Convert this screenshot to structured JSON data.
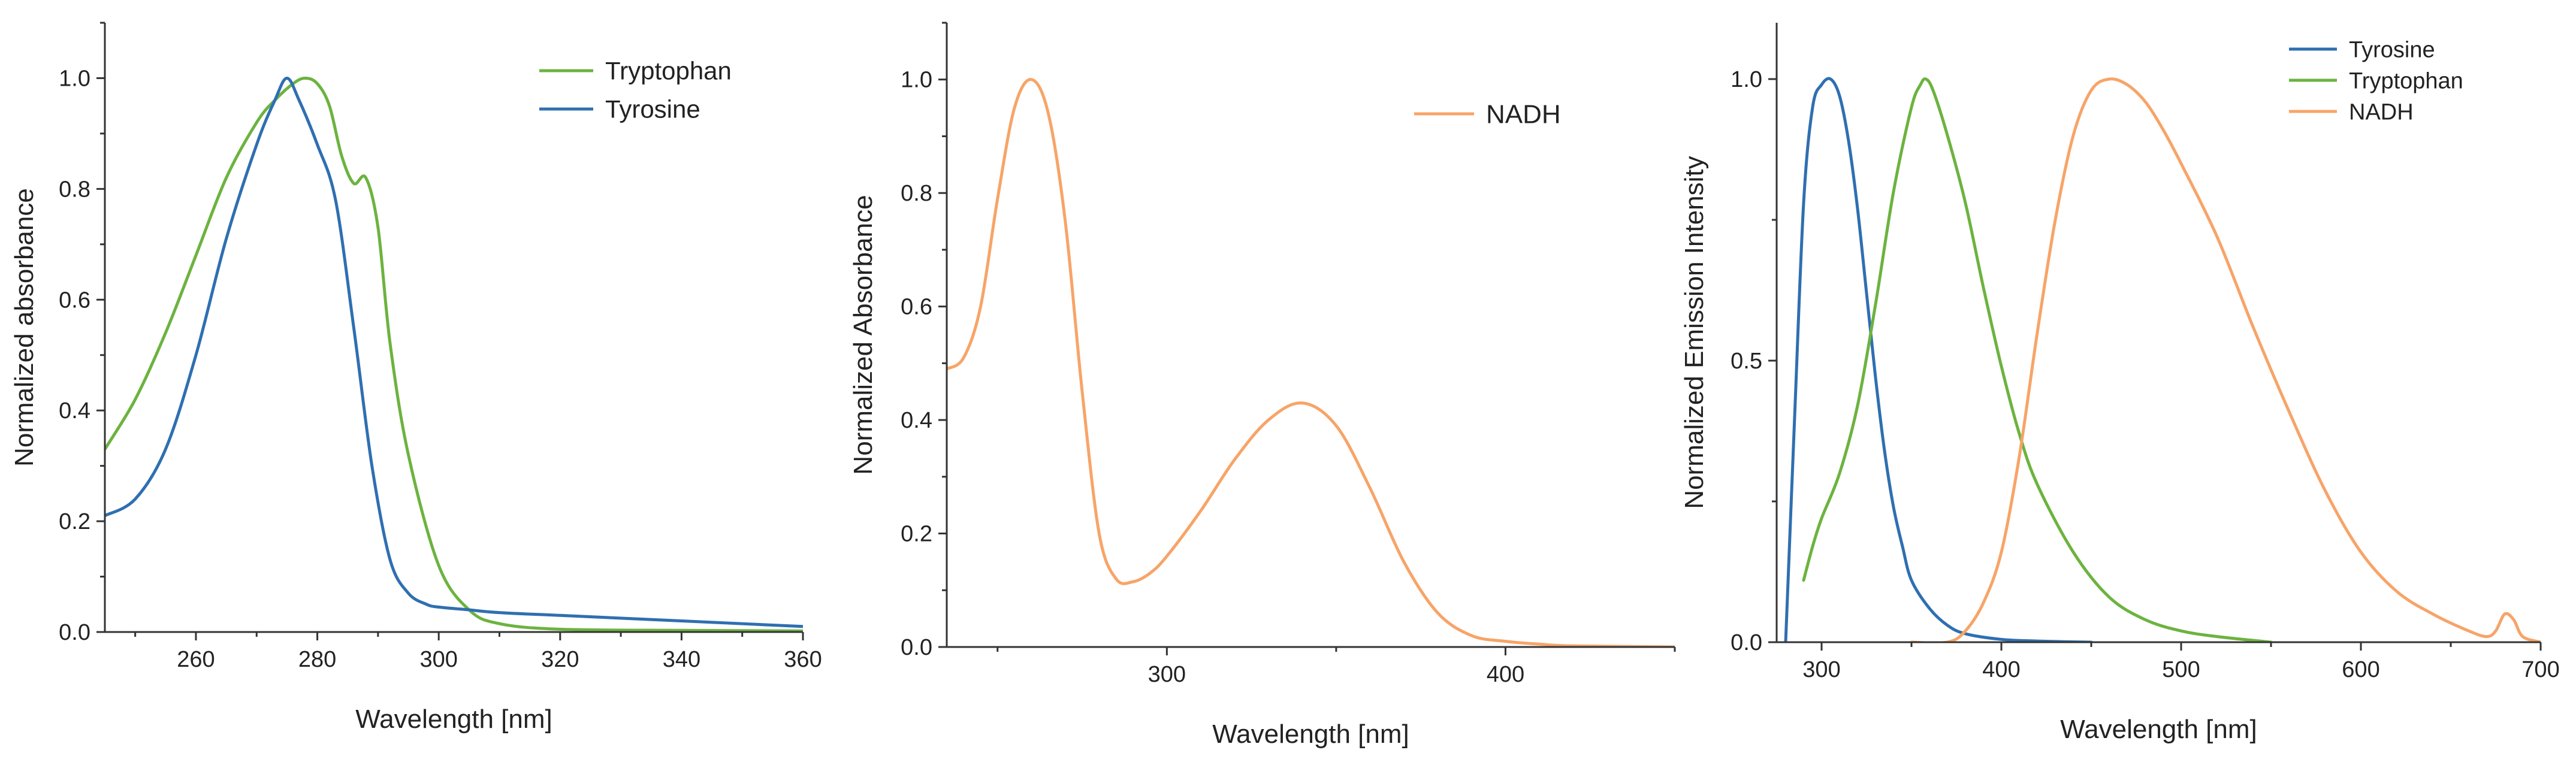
{
  "colors": {
    "tyrosine": "#2f6fb1",
    "tryptophan": "#6cb33f",
    "nadh": "#f7a468",
    "axis": "#333333"
  },
  "chart_data": [
    {
      "type": "line",
      "title": "",
      "xlabel": "Wavelength [nm]",
      "ylabel": "Normalized absorbance",
      "xlim": [
        245,
        360
      ],
      "ylim": [
        0,
        1.1
      ],
      "x_ticks": [
        260,
        280,
        300,
        320,
        340,
        360
      ],
      "y_ticks": [
        0.0,
        0.2,
        0.4,
        0.6,
        0.8,
        1.0
      ],
      "legend_position": "top-right",
      "series": [
        {
          "name": "Tryptophan",
          "color": "#6cb33f",
          "x": [
            245,
            250,
            255,
            260,
            265,
            270,
            273,
            276,
            278,
            280,
            282,
            284,
            286,
            288,
            290,
            292,
            295,
            300,
            305,
            310,
            320,
            340,
            360
          ],
          "y": [
            0.33,
            0.42,
            0.54,
            0.68,
            0.82,
            0.92,
            0.96,
            0.99,
            1.0,
            0.99,
            0.95,
            0.86,
            0.81,
            0.82,
            0.73,
            0.52,
            0.32,
            0.12,
            0.04,
            0.015,
            0.005,
            0.003,
            0.002
          ]
        },
        {
          "name": "Tyrosine",
          "color": "#2f6fb1",
          "x": [
            245,
            250,
            255,
            260,
            265,
            270,
            273,
            275,
            277,
            280,
            283,
            286,
            289,
            292,
            295,
            298,
            300,
            305,
            310,
            320,
            340,
            360
          ],
          "y": [
            0.21,
            0.24,
            0.33,
            0.5,
            0.71,
            0.88,
            0.96,
            1.0,
            0.96,
            0.88,
            0.78,
            0.55,
            0.3,
            0.13,
            0.07,
            0.05,
            0.045,
            0.04,
            0.035,
            0.03,
            0.02,
            0.01
          ]
        }
      ]
    },
    {
      "type": "line",
      "title": "",
      "xlabel": "Wavelength [nm]",
      "ylabel": "Normalized Absorbance",
      "xlim": [
        235,
        450
      ],
      "ylim": [
        0,
        1.1
      ],
      "x_ticks": [
        300,
        400
      ],
      "y_ticks": [
        0.0,
        0.2,
        0.4,
        0.6,
        0.8,
        1.0
      ],
      "legend_position": "top-right",
      "series": [
        {
          "name": "NADH",
          "color": "#f7a468",
          "x": [
            235,
            240,
            245,
            250,
            255,
            260,
            265,
            270,
            275,
            280,
            285,
            290,
            295,
            300,
            310,
            320,
            330,
            340,
            350,
            360,
            370,
            380,
            390,
            400,
            410,
            420,
            450
          ],
          "y": [
            0.49,
            0.51,
            0.6,
            0.79,
            0.95,
            1.0,
            0.94,
            0.75,
            0.45,
            0.2,
            0.12,
            0.115,
            0.13,
            0.16,
            0.24,
            0.33,
            0.4,
            0.43,
            0.39,
            0.28,
            0.15,
            0.06,
            0.02,
            0.01,
            0.005,
            0.002,
            0.0
          ]
        }
      ]
    },
    {
      "type": "line",
      "title": "",
      "xlabel": "Wavelength [nm]",
      "ylabel": "Normalized Emission Intensity",
      "xlim": [
        275,
        700
      ],
      "ylim": [
        0,
        1.1
      ],
      "x_ticks": [
        300,
        400,
        500,
        600,
        700
      ],
      "y_ticks": [
        0.0,
        0.5,
        1.0
      ],
      "legend_position": "top-right",
      "series": [
        {
          "name": "Tyrosine",
          "color": "#2f6fb1",
          "x": [
            280,
            285,
            290,
            295,
            300,
            305,
            310,
            315,
            320,
            325,
            330,
            335,
            340,
            345,
            350,
            360,
            370,
            380,
            400,
            420,
            450
          ],
          "y": [
            0.0,
            0.4,
            0.78,
            0.95,
            0.99,
            1.0,
            0.97,
            0.89,
            0.77,
            0.62,
            0.47,
            0.34,
            0.24,
            0.17,
            0.11,
            0.06,
            0.03,
            0.015,
            0.005,
            0.002,
            0.0
          ]
        },
        {
          "name": "Tryptophan",
          "color": "#6cb33f",
          "x": [
            290,
            295,
            300,
            310,
            320,
            330,
            340,
            350,
            355,
            358,
            362,
            370,
            380,
            390,
            400,
            410,
            420,
            440,
            460,
            480,
            500,
            520,
            550
          ],
          "y": [
            0.11,
            0.17,
            0.22,
            0.3,
            0.42,
            0.6,
            0.8,
            0.95,
            0.99,
            1.0,
            0.98,
            0.9,
            0.78,
            0.63,
            0.49,
            0.37,
            0.28,
            0.16,
            0.08,
            0.04,
            0.02,
            0.01,
            0.0
          ]
        },
        {
          "name": "NADH",
          "color": "#f7a468",
          "x": [
            350,
            370,
            380,
            390,
            400,
            410,
            420,
            430,
            440,
            450,
            460,
            470,
            480,
            490,
            500,
            520,
            540,
            560,
            580,
            600,
            620,
            640,
            660,
            670,
            675,
            680,
            685,
            690,
            700
          ],
          "y": [
            0.0,
            0.0,
            0.02,
            0.07,
            0.16,
            0.33,
            0.55,
            0.75,
            0.9,
            0.98,
            1.0,
            0.99,
            0.96,
            0.91,
            0.85,
            0.72,
            0.56,
            0.41,
            0.27,
            0.16,
            0.09,
            0.05,
            0.02,
            0.01,
            0.02,
            0.05,
            0.04,
            0.01,
            0.0
          ]
        }
      ]
    }
  ]
}
